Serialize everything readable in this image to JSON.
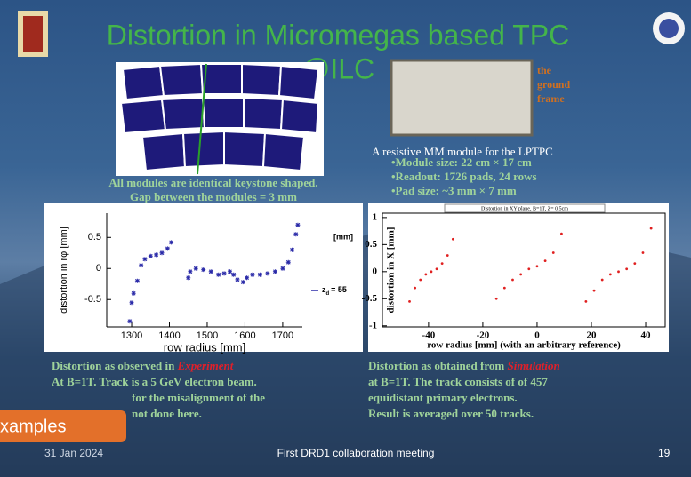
{
  "title": {
    "line1": "Distortion in Micromegas based TPC",
    "line2": "@ILC"
  },
  "ground_frame_label": [
    "the",
    "ground",
    "frame"
  ],
  "module_caption": [
    "All modules are identical keystone shaped.",
    "Gap between the modules = 3 mm"
  ],
  "lptpc": {
    "heading": "A resistive MM module for  the LPTPC",
    "bullets": [
      "•Module size: 22 cm × 17 cm",
      "•Readout:   1726 pads, 24 rows",
      "•Pad size:  ~3 mm × 7 mm"
    ]
  },
  "left_caption": {
    "prefix": "Distortion as observed in ",
    "emphasis": "Experiment",
    "lines": [
      "At B=1T. Track is a 5 GeV electron beam.",
      "for the misalignment of the",
      "not done here."
    ]
  },
  "right_caption": {
    "prefix": "Distortion as obtained from ",
    "emphasis": "Simulation",
    "lines": [
      "at B=1T. The track consists of of 457",
      "equidistant primary electrons.",
      "Result is averaged over 50 tracks."
    ]
  },
  "button": "xamples",
  "footer": {
    "date": "31 Jan 2024",
    "meeting": "First DRD1 collaboration meeting",
    "page": "19"
  },
  "chart_data": [
    {
      "type": "scatter",
      "x_label": "row radius [mm]",
      "y_label": "distortion in rφ [mm]",
      "unit_note": "[mm]",
      "legend": {
        "symbol": "z",
        "subscript": "d",
        "text": "= 55"
      },
      "color": "#2a2aa8",
      "xlim": [
        1234,
        1752
      ],
      "ylim": [
        -0.94,
        0.89
      ],
      "xticks": [
        1300,
        1400,
        1500,
        1600,
        1700
      ],
      "yticks": [
        -0.5,
        0,
        0.5
      ],
      "series": [
        {
          "x": [
            1295,
            1300,
            1305,
            1315,
            1325,
            1335,
            1350,
            1365,
            1380,
            1395,
            1405
          ],
          "values": [
            -0.85,
            -0.55,
            -0.4,
            -0.2,
            0.05,
            0.15,
            0.2,
            0.22,
            0.25,
            0.32,
            0.42
          ]
        },
        {
          "x": [
            1450,
            1455,
            1470,
            1490,
            1510,
            1530,
            1545,
            1560,
            1570,
            1580
          ],
          "values": [
            -0.15,
            -0.05,
            0,
            -0.02,
            -0.05,
            -0.1,
            -0.08,
            -0.05,
            -0.1,
            -0.18
          ]
        },
        {
          "x": [
            1595,
            1605,
            1620,
            1640,
            1660,
            1680,
            1700,
            1715,
            1725,
            1735,
            1740
          ],
          "values": [
            -0.22,
            -0.15,
            -0.1,
            -0.1,
            -0.08,
            -0.05,
            0,
            0.1,
            0.3,
            0.55,
            0.7
          ]
        }
      ]
    },
    {
      "type": "scatter",
      "title": "Distortion in XY plane, B=1T, Z= 0.5cm",
      "x_label": "row radius [mm] (with an arbitrary reference)",
      "y_label": "distortion in X [mm]",
      "color": "#e02020",
      "xlim": [
        -57,
        47.2
      ],
      "ylim": [
        -1.02,
        1.08
      ],
      "xticks": [
        -40,
        -20,
        0,
        20,
        40
      ],
      "yticks": [
        -1,
        -0.5,
        0,
        0.5,
        1
      ],
      "series": [
        {
          "x": [
            -47,
            -45,
            -43,
            -41,
            -39,
            -37,
            -35,
            -33,
            -31
          ],
          "values": [
            -0.55,
            -0.3,
            -0.15,
            -0.05,
            0,
            0.05,
            0.15,
            0.3,
            0.6
          ]
        },
        {
          "x": [
            -15,
            -12,
            -9,
            -6,
            -3,
            0,
            3,
            6,
            9
          ],
          "values": [
            -0.5,
            -0.3,
            -0.15,
            -0.05,
            0.05,
            0.1,
            0.2,
            0.35,
            0.7
          ]
        },
        {
          "x": [
            18,
            21,
            24,
            27,
            30,
            33,
            36,
            39,
            42
          ],
          "values": [
            -0.55,
            -0.35,
            -0.15,
            -0.05,
            0,
            0.05,
            0.15,
            0.35,
            0.8
          ]
        }
      ]
    }
  ]
}
